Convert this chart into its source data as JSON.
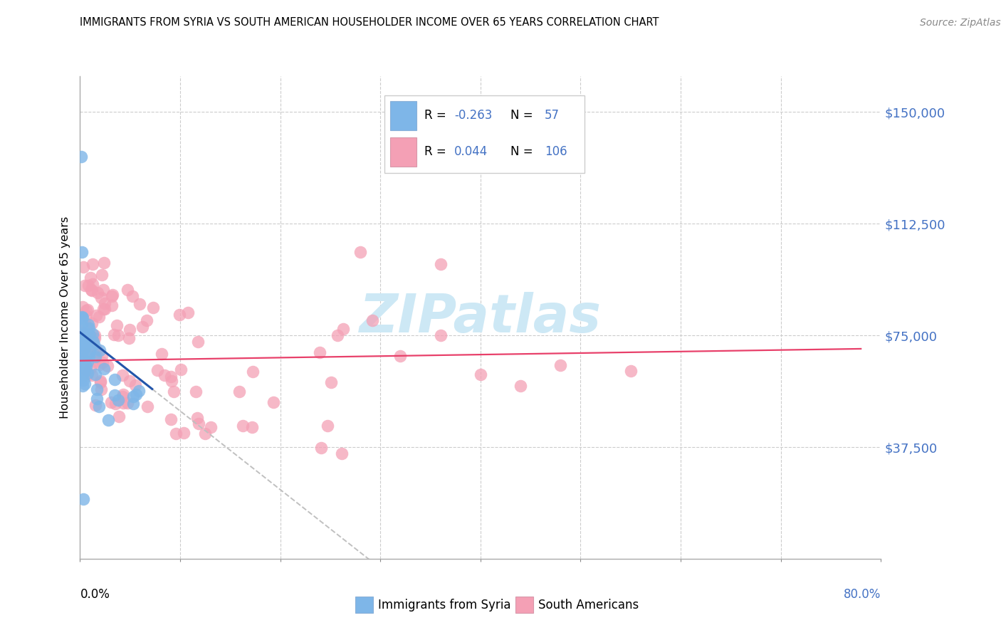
{
  "title": "IMMIGRANTS FROM SYRIA VS SOUTH AMERICAN HOUSEHOLDER INCOME OVER 65 YEARS CORRELATION CHART",
  "source": "Source: ZipAtlas.com",
  "ylabel": "Householder Income Over 65 years",
  "ytick_labels": [
    "$37,500",
    "$75,000",
    "$112,500",
    "$150,000"
  ],
  "ytick_values": [
    37500,
    75000,
    112500,
    150000
  ],
  "ylim": [
    0,
    162000
  ],
  "xlim": [
    0.0,
    0.8
  ],
  "color_syria": "#7eb6e8",
  "color_sa": "#f4a0b5",
  "color_syria_line": "#2255aa",
  "color_sa_line": "#e8406a",
  "color_dashed_line": "#c0c0c0",
  "watermark_color": "#cde8f5"
}
